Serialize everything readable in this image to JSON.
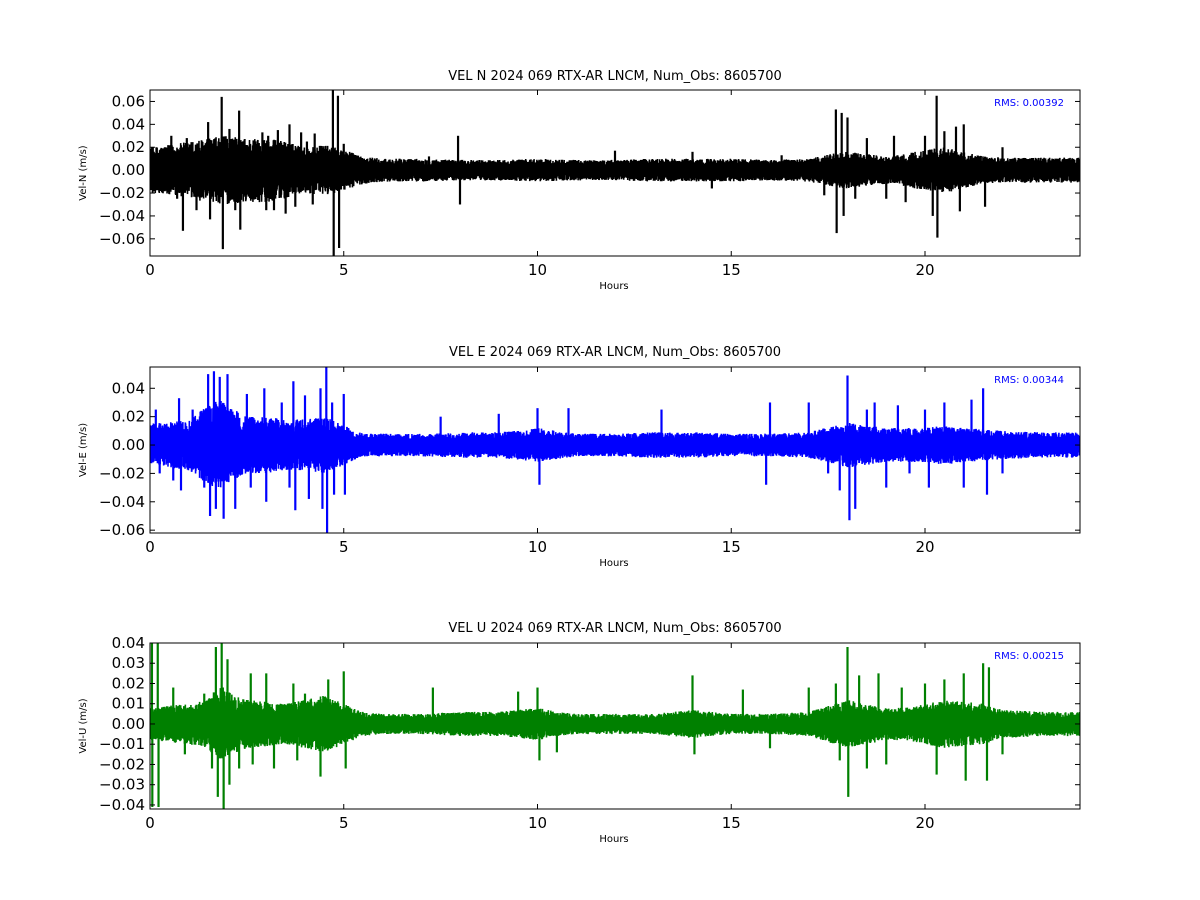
{
  "chart_data": [
    {
      "type": "line",
      "title": "VEL N 2024 069 RTX-AR  LNCM, Num_Obs: 8605700",
      "xlabel": "Hours",
      "ylabel": "Vel-N (m/s)",
      "xlim": [
        0,
        24
      ],
      "ylim": [
        -0.075,
        0.07
      ],
      "xticks": [
        0,
        5,
        10,
        15,
        20
      ],
      "xtick_labels": [
        "0",
        "5",
        "10",
        "15",
        "20"
      ],
      "yticks": [
        -0.06,
        -0.04,
        -0.02,
        0.0,
        0.02,
        0.04,
        0.06
      ],
      "ytick_labels": [
        "−0.06",
        "−0.04",
        "−0.02",
        "0.00",
        "0.02",
        "0.04",
        "0.06"
      ],
      "series_color": "#000000",
      "annotation": {
        "text": "RMS:  0.00392",
        "color": "#0000ff"
      },
      "envelope": [
        [
          0,
          0.02
        ],
        [
          0.5,
          0.022
        ],
        [
          1,
          0.025
        ],
        [
          1.5,
          0.028
        ],
        [
          2,
          0.03
        ],
        [
          2.5,
          0.028
        ],
        [
          3,
          0.028
        ],
        [
          3.5,
          0.025
        ],
        [
          4,
          0.02
        ],
        [
          4.5,
          0.022
        ],
        [
          5,
          0.018
        ],
        [
          5.5,
          0.012
        ],
        [
          6,
          0.01
        ],
        [
          7,
          0.01
        ],
        [
          8,
          0.009
        ],
        [
          9,
          0.009
        ],
        [
          10,
          0.01
        ],
        [
          11,
          0.009
        ],
        [
          12,
          0.009
        ],
        [
          13,
          0.01
        ],
        [
          14,
          0.01
        ],
        [
          15,
          0.01
        ],
        [
          16,
          0.009
        ],
        [
          17,
          0.01
        ],
        [
          17.7,
          0.015
        ],
        [
          18,
          0.016
        ],
        [
          18.5,
          0.014
        ],
        [
          19,
          0.012
        ],
        [
          19.5,
          0.014
        ],
        [
          20,
          0.018
        ],
        [
          20.5,
          0.02
        ],
        [
          21,
          0.016
        ],
        [
          21.5,
          0.012
        ],
        [
          22,
          0.011
        ],
        [
          23,
          0.011
        ],
        [
          24,
          0.011
        ]
      ],
      "spikes": [
        [
          0.55,
          0.03
        ],
        [
          0.7,
          -0.025
        ],
        [
          0.85,
          -0.053
        ],
        [
          0.95,
          0.028
        ],
        [
          1.2,
          -0.035
        ],
        [
          1.5,
          0.042
        ],
        [
          1.55,
          -0.043
        ],
        [
          1.85,
          0.064
        ],
        [
          1.88,
          -0.069
        ],
        [
          2.05,
          0.036
        ],
        [
          2.2,
          -0.035
        ],
        [
          2.3,
          0.052
        ],
        [
          2.33,
          -0.052
        ],
        [
          2.7,
          0.025
        ],
        [
          2.9,
          0.033
        ],
        [
          3.0,
          -0.035
        ],
        [
          3.05,
          0.03
        ],
        [
          3.2,
          -0.035
        ],
        [
          3.3,
          0.035
        ],
        [
          3.5,
          -0.038
        ],
        [
          3.6,
          0.04
        ],
        [
          3.75,
          -0.032
        ],
        [
          3.9,
          0.033
        ],
        [
          4.05,
          0.025
        ],
        [
          4.2,
          -0.03
        ],
        [
          4.25,
          0.032
        ],
        [
          4.72,
          0.07
        ],
        [
          4.74,
          -0.075
        ],
        [
          4.85,
          0.065
        ],
        [
          4.88,
          -0.068
        ],
        [
          5.0,
          0.023
        ],
        [
          5.02,
          -0.017
        ],
        [
          7.2,
          0.012
        ],
        [
          7.95,
          0.03
        ],
        [
          8.0,
          -0.03
        ],
        [
          12.0,
          0.017
        ],
        [
          14.0,
          0.016
        ],
        [
          14.5,
          -0.016
        ],
        [
          16.3,
          0.013
        ],
        [
          17.4,
          -0.022
        ],
        [
          17.7,
          0.053
        ],
        [
          17.72,
          -0.055
        ],
        [
          17.85,
          0.05
        ],
        [
          17.9,
          -0.04
        ],
        [
          18.0,
          0.046
        ],
        [
          18.2,
          -0.025
        ],
        [
          18.5,
          0.028
        ],
        [
          19.0,
          -0.025
        ],
        [
          19.2,
          0.03
        ],
        [
          19.5,
          -0.028
        ],
        [
          20.0,
          0.03
        ],
        [
          20.2,
          -0.04
        ],
        [
          20.3,
          0.065
        ],
        [
          20.32,
          -0.059
        ],
        [
          20.5,
          0.034
        ],
        [
          20.8,
          0.038
        ],
        [
          20.9,
          -0.036
        ],
        [
          21.0,
          0.04
        ],
        [
          21.55,
          -0.032
        ],
        [
          22.0,
          0.02
        ]
      ]
    },
    {
      "type": "line",
      "title": "VEL E 2024 069 RTX-AR  LNCM, Num_Obs: 8605700",
      "xlabel": "Hours",
      "ylabel": "Vel-E (m/s)",
      "xlim": [
        0,
        24
      ],
      "ylim": [
        -0.062,
        0.055
      ],
      "xticks": [
        0,
        5,
        10,
        15,
        20
      ],
      "xtick_labels": [
        "0",
        "5",
        "10",
        "15",
        "20"
      ],
      "yticks": [
        -0.06,
        -0.04,
        -0.02,
        0.0,
        0.02,
        0.04
      ],
      "ytick_labels": [
        "−0.06",
        "−0.04",
        "−0.02",
        "0.00",
        "0.02",
        "0.04"
      ],
      "series_color": "#0000ff",
      "annotation": {
        "text": "RMS:  0.00344",
        "color": "#0000ff"
      },
      "envelope": [
        [
          0,
          0.015
        ],
        [
          0.5,
          0.016
        ],
        [
          1,
          0.018
        ],
        [
          1.5,
          0.028
        ],
        [
          1.8,
          0.032
        ],
        [
          2,
          0.028
        ],
        [
          2.5,
          0.02
        ],
        [
          3,
          0.02
        ],
        [
          3.5,
          0.018
        ],
        [
          4,
          0.018
        ],
        [
          4.5,
          0.02
        ],
        [
          5,
          0.014
        ],
        [
          5.5,
          0.008
        ],
        [
          6,
          0.008
        ],
        [
          7,
          0.008
        ],
        [
          8,
          0.009
        ],
        [
          9,
          0.009
        ],
        [
          10,
          0.012
        ],
        [
          10.5,
          0.01
        ],
        [
          11,
          0.008
        ],
        [
          12,
          0.008
        ],
        [
          13,
          0.009
        ],
        [
          14,
          0.009
        ],
        [
          15,
          0.008
        ],
        [
          16,
          0.008
        ],
        [
          17,
          0.009
        ],
        [
          18,
          0.016
        ],
        [
          18.5,
          0.014
        ],
        [
          19,
          0.012
        ],
        [
          19.5,
          0.012
        ],
        [
          20,
          0.012
        ],
        [
          20.5,
          0.014
        ],
        [
          21,
          0.012
        ],
        [
          22,
          0.01
        ],
        [
          23,
          0.009
        ],
        [
          24,
          0.009
        ]
      ],
      "spikes": [
        [
          0.15,
          0.025
        ],
        [
          0.25,
          -0.02
        ],
        [
          0.6,
          -0.025
        ],
        [
          0.75,
          0.033
        ],
        [
          0.8,
          -0.032
        ],
        [
          1.1,
          0.025
        ],
        [
          1.4,
          -0.03
        ],
        [
          1.5,
          0.05
        ],
        [
          1.55,
          -0.05
        ],
        [
          1.65,
          0.052
        ],
        [
          1.7,
          -0.045
        ],
        [
          1.8,
          0.048
        ],
        [
          1.9,
          -0.052
        ],
        [
          2.0,
          0.05
        ],
        [
          2.2,
          -0.045
        ],
        [
          2.5,
          0.036
        ],
        [
          2.6,
          -0.03
        ],
        [
          2.95,
          0.04
        ],
        [
          3.0,
          -0.04
        ],
        [
          3.4,
          0.03
        ],
        [
          3.6,
          -0.03
        ],
        [
          3.7,
          0.045
        ],
        [
          3.75,
          -0.046
        ],
        [
          4.0,
          0.035
        ],
        [
          4.1,
          -0.038
        ],
        [
          4.4,
          0.04
        ],
        [
          4.45,
          -0.045
        ],
        [
          4.55,
          0.055
        ],
        [
          4.57,
          -0.062
        ],
        [
          4.7,
          0.03
        ],
        [
          4.75,
          -0.035
        ],
        [
          5.0,
          0.036
        ],
        [
          5.03,
          -0.035
        ],
        [
          7.5,
          0.02
        ],
        [
          9.0,
          0.022
        ],
        [
          10.0,
          0.026
        ],
        [
          10.05,
          -0.028
        ],
        [
          10.8,
          0.026
        ],
        [
          13.2,
          0.025
        ],
        [
          15.9,
          -0.028
        ],
        [
          16.0,
          0.03
        ],
        [
          17.0,
          0.03
        ],
        [
          17.5,
          -0.02
        ],
        [
          17.8,
          -0.032
        ],
        [
          18.0,
          0.049
        ],
        [
          18.05,
          -0.053
        ],
        [
          18.2,
          -0.045
        ],
        [
          18.5,
          0.025
        ],
        [
          18.7,
          0.03
        ],
        [
          19.0,
          -0.03
        ],
        [
          19.3,
          0.028
        ],
        [
          19.6,
          -0.02
        ],
        [
          20.0,
          0.025
        ],
        [
          20.1,
          -0.03
        ],
        [
          20.5,
          0.03
        ],
        [
          21.0,
          -0.03
        ],
        [
          21.2,
          0.032
        ],
        [
          21.5,
          0.04
        ],
        [
          21.6,
          -0.035
        ],
        [
          22.0,
          -0.02
        ]
      ]
    },
    {
      "type": "line",
      "title": "VEL U 2024 069 RTX-AR  LNCM, Num_Obs: 8605700",
      "xlabel": "Hours",
      "ylabel": "Vel-U (m/s)",
      "xlim": [
        0,
        24
      ],
      "ylim": [
        -0.042,
        0.04
      ],
      "xticks": [
        0,
        5,
        10,
        15,
        20
      ],
      "xtick_labels": [
        "0",
        "5",
        "10",
        "15",
        "20"
      ],
      "yticks": [
        -0.04,
        -0.03,
        -0.02,
        -0.01,
        0.0,
        0.01,
        0.02,
        0.03,
        0.04
      ],
      "ytick_labels": [
        "−0.04",
        "−0.03",
        "−0.02",
        "−0.01",
        "0.00",
        "0.01",
        "0.02",
        "0.03",
        "0.04"
      ],
      "series_color": "#008000",
      "annotation": {
        "text": "RMS:  0.00215",
        "color": "#0000ff"
      },
      "envelope": [
        [
          0,
          0.008
        ],
        [
          0.5,
          0.009
        ],
        [
          1,
          0.01
        ],
        [
          1.5,
          0.012
        ],
        [
          1.8,
          0.02
        ],
        [
          2,
          0.016
        ],
        [
          2.5,
          0.012
        ],
        [
          3,
          0.011
        ],
        [
          3.5,
          0.01
        ],
        [
          4,
          0.012
        ],
        [
          4.5,
          0.014
        ],
        [
          5,
          0.01
        ],
        [
          5.5,
          0.006
        ],
        [
          6,
          0.005
        ],
        [
          7,
          0.005
        ],
        [
          8,
          0.006
        ],
        [
          9,
          0.006
        ],
        [
          10,
          0.008
        ],
        [
          10.5,
          0.006
        ],
        [
          11,
          0.005
        ],
        [
          12,
          0.005
        ],
        [
          13,
          0.005
        ],
        [
          14,
          0.007
        ],
        [
          15,
          0.005
        ],
        [
          16,
          0.005
        ],
        [
          17,
          0.006
        ],
        [
          18,
          0.012
        ],
        [
          18.5,
          0.01
        ],
        [
          19,
          0.008
        ],
        [
          19.5,
          0.008
        ],
        [
          20,
          0.01
        ],
        [
          20.5,
          0.012
        ],
        [
          21,
          0.011
        ],
        [
          21.5,
          0.01
        ],
        [
          22,
          0.007
        ],
        [
          23,
          0.006
        ],
        [
          24,
          0.006
        ]
      ],
      "spikes": [
        [
          0.05,
          0.04
        ],
        [
          0.06,
          -0.041
        ],
        [
          0.2,
          0.04
        ],
        [
          0.22,
          -0.041
        ],
        [
          0.6,
          0.018
        ],
        [
          0.9,
          -0.015
        ],
        [
          1.4,
          0.015
        ],
        [
          1.6,
          -0.022
        ],
        [
          1.7,
          0.038
        ],
        [
          1.75,
          -0.036
        ],
        [
          1.85,
          0.04
        ],
        [
          1.9,
          -0.042
        ],
        [
          2.0,
          0.032
        ],
        [
          2.05,
          -0.03
        ],
        [
          2.3,
          -0.022
        ],
        [
          2.6,
          0.025
        ],
        [
          2.65,
          -0.02
        ],
        [
          3.0,
          0.025
        ],
        [
          3.2,
          -0.022
        ],
        [
          3.7,
          0.02
        ],
        [
          3.8,
          -0.018
        ],
        [
          4.0,
          0.015
        ],
        [
          4.4,
          -0.026
        ],
        [
          4.6,
          0.022
        ],
        [
          5.0,
          0.026
        ],
        [
          5.05,
          -0.022
        ],
        [
          7.3,
          0.018
        ],
        [
          9.5,
          0.016
        ],
        [
          10.0,
          0.018
        ],
        [
          10.05,
          -0.018
        ],
        [
          10.5,
          -0.014
        ],
        [
          14.0,
          0.024
        ],
        [
          14.05,
          -0.015
        ],
        [
          15.3,
          0.017
        ],
        [
          16.0,
          -0.012
        ],
        [
          17.0,
          0.018
        ],
        [
          17.7,
          0.02
        ],
        [
          17.8,
          -0.018
        ],
        [
          18.0,
          0.038
        ],
        [
          18.02,
          -0.036
        ],
        [
          18.3,
          0.024
        ],
        [
          18.5,
          -0.022
        ],
        [
          18.8,
          0.025
        ],
        [
          19.0,
          -0.02
        ],
        [
          19.4,
          0.018
        ],
        [
          20.0,
          0.02
        ],
        [
          20.3,
          -0.025
        ],
        [
          20.5,
          0.022
        ],
        [
          21.0,
          0.025
        ],
        [
          21.05,
          -0.028
        ],
        [
          21.5,
          0.03
        ],
        [
          21.6,
          -0.028
        ],
        [
          21.65,
          0.028
        ],
        [
          22.0,
          -0.015
        ]
      ]
    }
  ]
}
